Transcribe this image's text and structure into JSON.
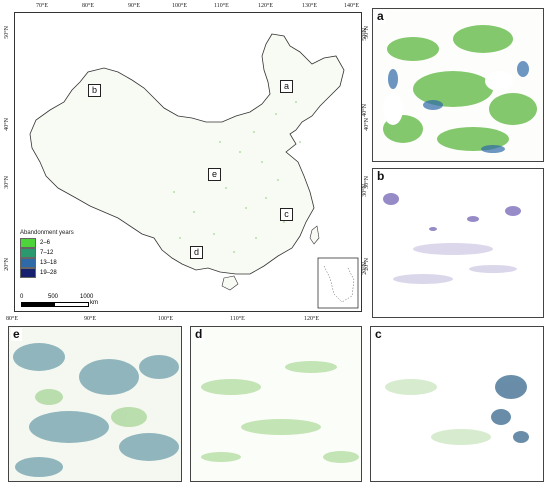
{
  "main_map": {
    "lon_ticks": [
      "70°E",
      "80°E",
      "90°E",
      "100°E",
      "110°E",
      "120°E",
      "130°E",
      "140°E"
    ],
    "lat_ticks_left": [
      "50°N",
      "40°N",
      "30°N",
      "20°N"
    ],
    "lat_ticks_right": [
      "50°N",
      "40°N",
      "30°N",
      "20°N"
    ],
    "bottom_lon_ticks": [
      "80°E",
      "90°E",
      "100°E",
      "110°E",
      "120°E"
    ],
    "region_labels": [
      "a",
      "b",
      "c",
      "d",
      "e"
    ],
    "legend": {
      "title": "Abandonment years",
      "items": [
        {
          "label": "2–6",
          "color": "#4dd43a"
        },
        {
          "label": "7–12",
          "color": "#2a9a6e"
        },
        {
          "label": "13–18",
          "color": "#2f6aa8"
        },
        {
          "label": "19–28",
          "color": "#15206e"
        }
      ]
    },
    "scalebar": {
      "labels": [
        "0",
        "500",
        "1000"
      ],
      "unit": "km"
    }
  },
  "panels": [
    {
      "id": "a",
      "label": "a",
      "lat_ticks": [
        "50°N",
        "40°N"
      ]
    },
    {
      "id": "b",
      "label": "b",
      "lat_ticks": [
        "30°N",
        "20°N"
      ]
    },
    {
      "id": "e",
      "label": "e"
    },
    {
      "id": "d",
      "label": "d"
    },
    {
      "id": "c",
      "label": "c"
    }
  ]
}
